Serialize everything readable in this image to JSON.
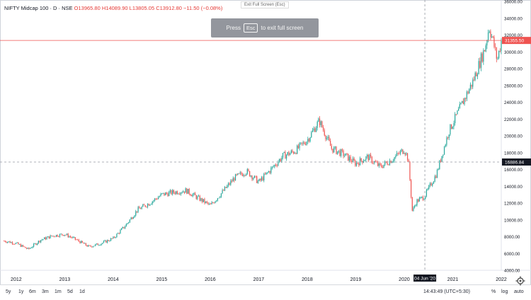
{
  "legend": {
    "symbol": "NIFTY Midcap 100 · D · NSE",
    "open": "O13965.80",
    "high": "H14089.90",
    "low": "L13805.05",
    "close": "C13912.80",
    "change": "−11.50 (−0.08%)"
  },
  "fullscreen": {
    "title": "Exit Full Screen (Esc)",
    "press": "Press",
    "key": "Esc",
    "message": "to exit full screen"
  },
  "price_axis": {
    "ticks": [
      "36000.00",
      "34000.00",
      "32000.00",
      "30000.00",
      "28000.00",
      "26000.00",
      "24000.00",
      "22000.00",
      "20000.00",
      "18000.00",
      "16000.00",
      "14000.00",
      "12000.00",
      "10000.00",
      "8000.00",
      "6000.00",
      "4000.00"
    ],
    "last_price_label": "31355.50",
    "crosshair_price_label": "16886.84"
  },
  "time_axis": {
    "ticks": [
      "2012",
      "2013",
      "2014",
      "2015",
      "2016",
      "2017",
      "2018",
      "2019",
      "2020",
      "2021",
      "2022"
    ],
    "crosshair_date_label": "04 Jun '20"
  },
  "toolbar": {
    "timeframes": [
      "5y",
      "1y",
      "6m",
      "3m",
      "1m",
      "5d",
      "1d"
    ],
    "clock": "14:43:49 (UTC+5:30)",
    "percent": "%",
    "log": "log",
    "auto": "auto"
  },
  "colors": {
    "up": "#26a69a",
    "down": "#ef5350",
    "last_price_line": "#ef5350",
    "crosshair": "#9598a1",
    "axis_label_bg": "#131722"
  },
  "chart_data": {
    "type": "line",
    "title": "NIFTY Midcap 100 · D · NSE",
    "xlabel": "",
    "ylabel": "",
    "xlim": [
      "2011-09",
      "2022-01"
    ],
    "ylim": [
      4000,
      36000
    ],
    "grid": false,
    "x": [
      "2011-10",
      "2012-01",
      "2012-04",
      "2012-07",
      "2012-10",
      "2013-01",
      "2013-04",
      "2013-07",
      "2013-10",
      "2014-01",
      "2014-04",
      "2014-07",
      "2014-10",
      "2015-01",
      "2015-04",
      "2015-07",
      "2015-10",
      "2016-01",
      "2016-04",
      "2016-07",
      "2016-10",
      "2017-01",
      "2017-04",
      "2017-07",
      "2017-10",
      "2018-01",
      "2018-04",
      "2018-07",
      "2018-10",
      "2019-01",
      "2019-04",
      "2019-07",
      "2019-10",
      "2020-01",
      "2020-02",
      "2020-03",
      "2020-04",
      "2020-06",
      "2020-09",
      "2020-12",
      "2021-03",
      "2021-06",
      "2021-09",
      "2021-10",
      "2021-11",
      "2021-12",
      "2022-01"
    ],
    "series": [
      {
        "values": [
          7500,
          7200,
          6500,
          7600,
          8100,
          8300,
          7600,
          6800,
          7200,
          7800,
          9300,
          11200,
          12000,
          13000,
          13300,
          13500,
          12600,
          11700,
          13300,
          15000,
          15800,
          14500,
          16000,
          17600,
          18200,
          19500,
          21800,
          18500,
          17800,
          16700,
          17500,
          16300,
          17200,
          18400,
          17200,
          11000,
          12200,
          12800,
          15500,
          20500,
          23500,
          26500,
          30500,
          33000,
          31200,
          29000,
          31300
        ]
      }
    ],
    "last_price": 31355.5,
    "crosshair": {
      "date": "04 Jun '20",
      "price": 16886.84
    }
  }
}
